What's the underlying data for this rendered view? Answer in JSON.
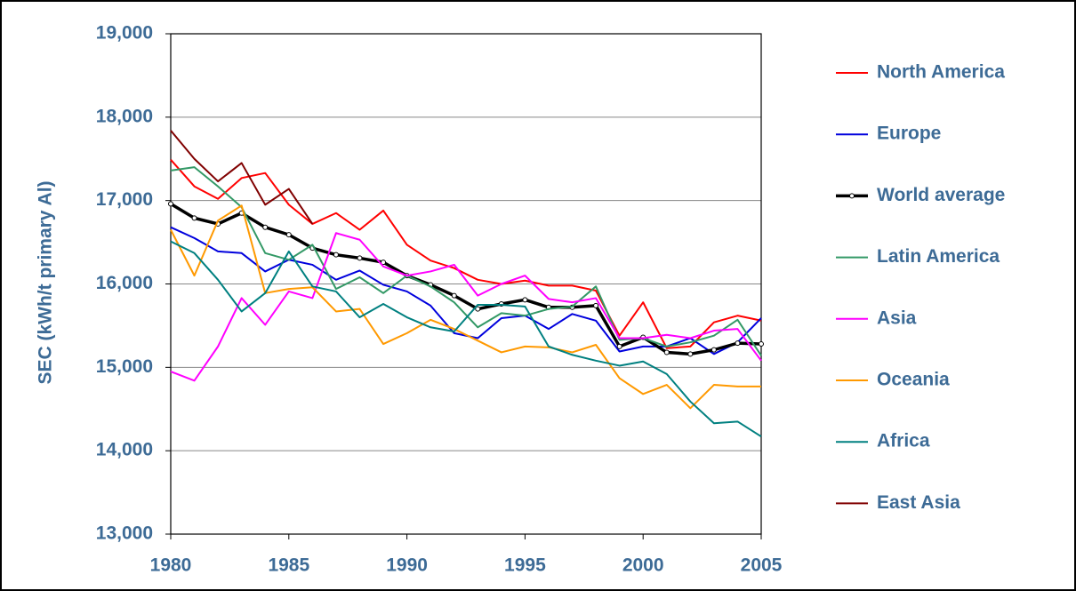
{
  "chart_data": {
    "type": "line",
    "y_label": "SEC (kWh/t primary Al)",
    "x": [
      1980,
      1981,
      1982,
      1983,
      1984,
      1985,
      1986,
      1987,
      1988,
      1989,
      1990,
      1991,
      1992,
      1993,
      1994,
      1995,
      1996,
      1997,
      1998,
      1999,
      2000,
      2001,
      2002,
      2003,
      2004,
      2005
    ],
    "xlim": [
      1980,
      2005
    ],
    "xticks": [
      1980,
      1985,
      1990,
      1995,
      2000,
      2005
    ],
    "ylim": [
      13000,
      19000
    ],
    "yticks": [
      {
        "value": 13000,
        "label": "13,000"
      },
      {
        "value": 14000,
        "label": "14,000"
      },
      {
        "value": 15000,
        "label": "15,000"
      },
      {
        "value": 16000,
        "label": "16,000"
      },
      {
        "value": 17000,
        "label": "17,000"
      },
      {
        "value": 18000,
        "label": "18,000"
      },
      {
        "value": 19000,
        "label": "19,000"
      }
    ],
    "grid": true,
    "legend": "right",
    "series": [
      {
        "name": "North America",
        "color": "#ff0000",
        "values": [
          17490,
          17170,
          17020,
          17270,
          17330,
          16950,
          16720,
          16850,
          16650,
          16880,
          16470,
          16280,
          16190,
          16050,
          16000,
          16040,
          15980,
          15980,
          15920,
          15380,
          15780,
          15230,
          15250,
          15540,
          15620,
          15560
        ]
      },
      {
        "name": "Europe",
        "color": "#0000dd",
        "values": [
          16680,
          16550,
          16390,
          16370,
          16150,
          16290,
          16230,
          16050,
          16160,
          15990,
          15910,
          15740,
          15410,
          15350,
          15590,
          15620,
          15460,
          15640,
          15560,
          15190,
          15250,
          15250,
          15350,
          15160,
          15300,
          15590
        ]
      },
      {
        "name": "World average",
        "color": "#000000",
        "markers": true,
        "values": [
          16960,
          16790,
          16720,
          16850,
          16680,
          16590,
          16430,
          16350,
          16310,
          16260,
          16100,
          15990,
          15860,
          15700,
          15760,
          15810,
          15720,
          15720,
          15740,
          15250,
          15360,
          15180,
          15160,
          15210,
          15290,
          15280
        ]
      },
      {
        "name": "Latin America",
        "color": "#339966",
        "values": [
          17360,
          17400,
          17170,
          16920,
          16370,
          16290,
          16470,
          15940,
          16080,
          15890,
          16100,
          15970,
          15780,
          15480,
          15650,
          15620,
          15700,
          15730,
          15970,
          15330,
          15350,
          15250,
          15300,
          15380,
          15570,
          15140
        ]
      },
      {
        "name": "Asia",
        "color": "#ff00ff",
        "values": [
          14950,
          14840,
          15250,
          15830,
          15510,
          15910,
          15830,
          16610,
          16530,
          16210,
          16100,
          16150,
          16230,
          15860,
          16000,
          16100,
          15820,
          15780,
          15830,
          15350,
          15350,
          15390,
          15350,
          15440,
          15460,
          15080
        ]
      },
      {
        "name": "Oceania",
        "color": "#ff9900",
        "values": [
          16650,
          16100,
          16760,
          16940,
          15890,
          15940,
          15960,
          15670,
          15700,
          15280,
          15410,
          15570,
          15460,
          15320,
          15180,
          15250,
          15240,
          15180,
          15270,
          14870,
          14680,
          14790,
          14510,
          14790,
          14770,
          14770
        ]
      },
      {
        "name": "Africa",
        "color": "#008080",
        "values": [
          16510,
          16370,
          16050,
          15670,
          15890,
          16390,
          15970,
          15910,
          15600,
          15760,
          15600,
          15480,
          15430,
          15750,
          15750,
          15730,
          15250,
          15150,
          15080,
          15020,
          15070,
          14920,
          14590,
          14330,
          14350,
          14170
        ]
      },
      {
        "name": "East Asia",
        "color": "#800000",
        "values": [
          17840,
          17500,
          17230,
          17450,
          16950,
          17140,
          16720,
          null,
          null,
          null,
          null,
          null,
          null,
          null,
          null,
          null,
          null,
          null,
          null,
          null,
          null,
          null,
          null,
          null,
          null,
          null
        ]
      }
    ]
  }
}
